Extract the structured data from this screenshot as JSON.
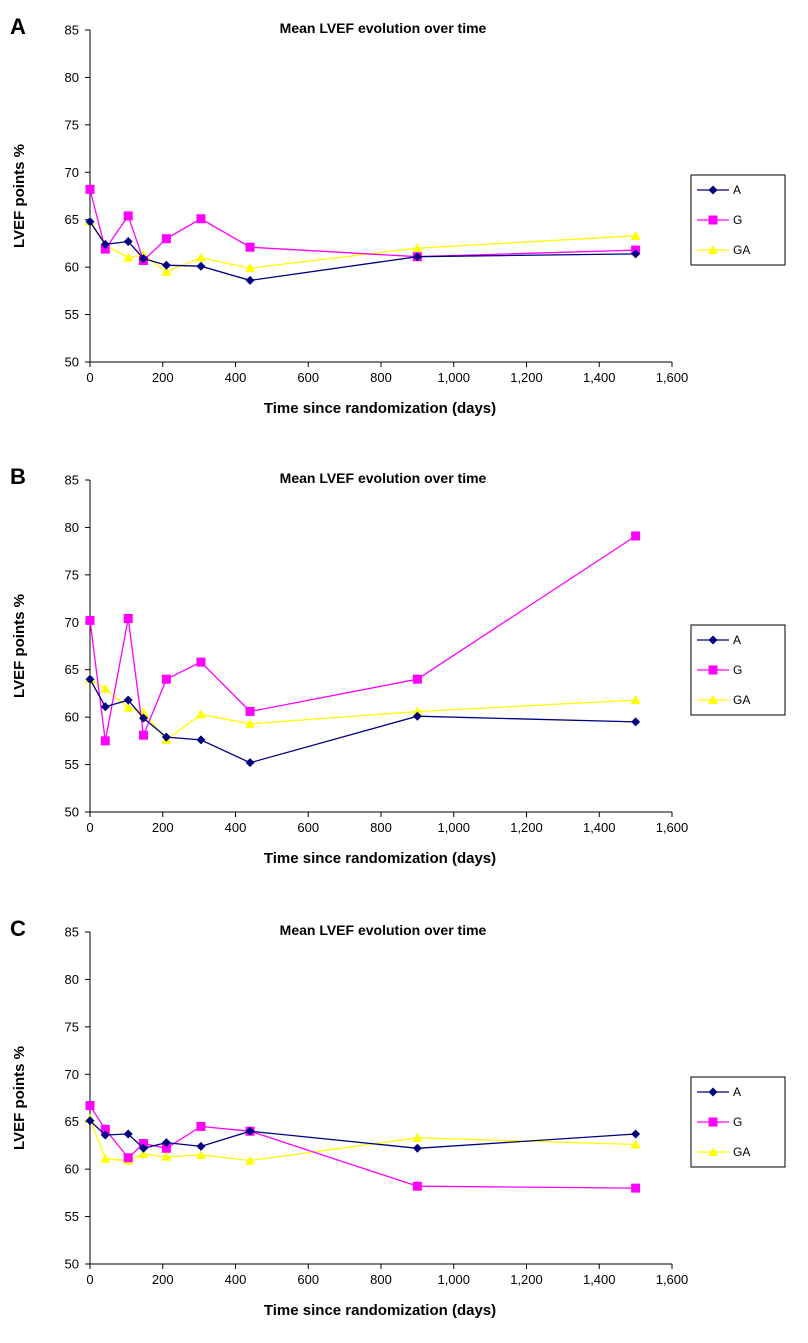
{
  "chart_data": [
    {
      "panel": "A",
      "type": "line",
      "title": "Mean LVEF evolution over time",
      "xlabel": "Time since randomization (days)",
      "ylabel": "LVEF points %",
      "xlim": [
        0,
        1600
      ],
      "ylim": [
        50,
        85
      ],
      "xticks": [
        "0",
        "200",
        "400",
        "600",
        "800",
        "1,000",
        "1,200",
        "1,400",
        "1,600"
      ],
      "yticks": [
        "50",
        "55",
        "60",
        "65",
        "70",
        "75",
        "80",
        "85"
      ],
      "grid": false,
      "legend_position": "right",
      "x": [
        0,
        42,
        105,
        147,
        210,
        305,
        440,
        900,
        1500
      ],
      "series": [
        {
          "name": "A",
          "color": "#000080",
          "marker": "diamond",
          "values": [
            64.8,
            62.4,
            62.7,
            60.9,
            60.2,
            60.1,
            58.6,
            61.1,
            61.4
          ]
        },
        {
          "name": "G",
          "color": "#ff00ff",
          "marker": "square",
          "values": [
            68.2,
            61.9,
            65.4,
            60.7,
            63.0,
            65.1,
            62.1,
            61.1,
            61.8
          ]
        },
        {
          "name": "GA",
          "color": "#ffff00",
          "marker": "triangle",
          "values": [
            64.8,
            62.3,
            61.0,
            61.3,
            59.5,
            61.0,
            59.9,
            62.0,
            63.3
          ]
        }
      ]
    },
    {
      "panel": "B",
      "type": "line",
      "title": "Mean LVEF evolution over time",
      "xlabel": "Time since randomization (days)",
      "ylabel": "LVEF points %",
      "xlim": [
        0,
        1600
      ],
      "ylim": [
        50,
        85
      ],
      "xticks": [
        "0",
        "200",
        "400",
        "600",
        "800",
        "1,000",
        "1,200",
        "1,400",
        "1,600"
      ],
      "yticks": [
        "50",
        "55",
        "60",
        "65",
        "70",
        "75",
        "80",
        "85"
      ],
      "grid": false,
      "legend_position": "right",
      "x": [
        0,
        42,
        105,
        147,
        210,
        305,
        440,
        900,
        1500
      ],
      "series": [
        {
          "name": "A",
          "color": "#000080",
          "marker": "diamond",
          "values": [
            64.0,
            61.1,
            61.8,
            59.9,
            57.9,
            57.6,
            55.2,
            60.1,
            59.5
          ]
        },
        {
          "name": "G",
          "color": "#ff00ff",
          "marker": "square",
          "values": [
            70.2,
            57.5,
            70.4,
            58.1,
            64.0,
            65.8,
            60.6,
            64.0,
            79.1
          ]
        },
        {
          "name": "GA",
          "color": "#ffff00",
          "marker": "triangle",
          "values": [
            64.0,
            63.0,
            61.0,
            60.5,
            57.6,
            60.3,
            59.3,
            60.6,
            61.8
          ]
        }
      ]
    },
    {
      "panel": "C",
      "type": "line",
      "title": "Mean LVEF evolution over time",
      "xlabel": "Time since randomization (days)",
      "ylabel": "LVEF points %",
      "xlim": [
        0,
        1600
      ],
      "ylim": [
        50,
        85
      ],
      "xticks": [
        "0",
        "200",
        "400",
        "600",
        "800",
        "1,000",
        "1,200",
        "1,400",
        "1,600"
      ],
      "yticks": [
        "50",
        "55",
        "60",
        "65",
        "70",
        "75",
        "80",
        "85"
      ],
      "grid": false,
      "legend_position": "right",
      "x": [
        0,
        42,
        105,
        147,
        210,
        305,
        440,
        900,
        1500
      ],
      "series": [
        {
          "name": "A",
          "color": "#000080",
          "marker": "diamond",
          "values": [
            65.1,
            63.6,
            63.7,
            62.2,
            62.8,
            62.4,
            64.0,
            62.2,
            63.7
          ]
        },
        {
          "name": "G",
          "color": "#ff00ff",
          "marker": "square",
          "values": [
            66.7,
            64.2,
            61.2,
            62.7,
            62.2,
            64.5,
            64.0,
            58.2,
            58.0
          ]
        },
        {
          "name": "GA",
          "color": "#ffff00",
          "marker": "triangle",
          "values": [
            65.3,
            61.1,
            60.9,
            61.6,
            61.3,
            61.5,
            60.9,
            63.3,
            62.6
          ]
        }
      ]
    }
  ]
}
